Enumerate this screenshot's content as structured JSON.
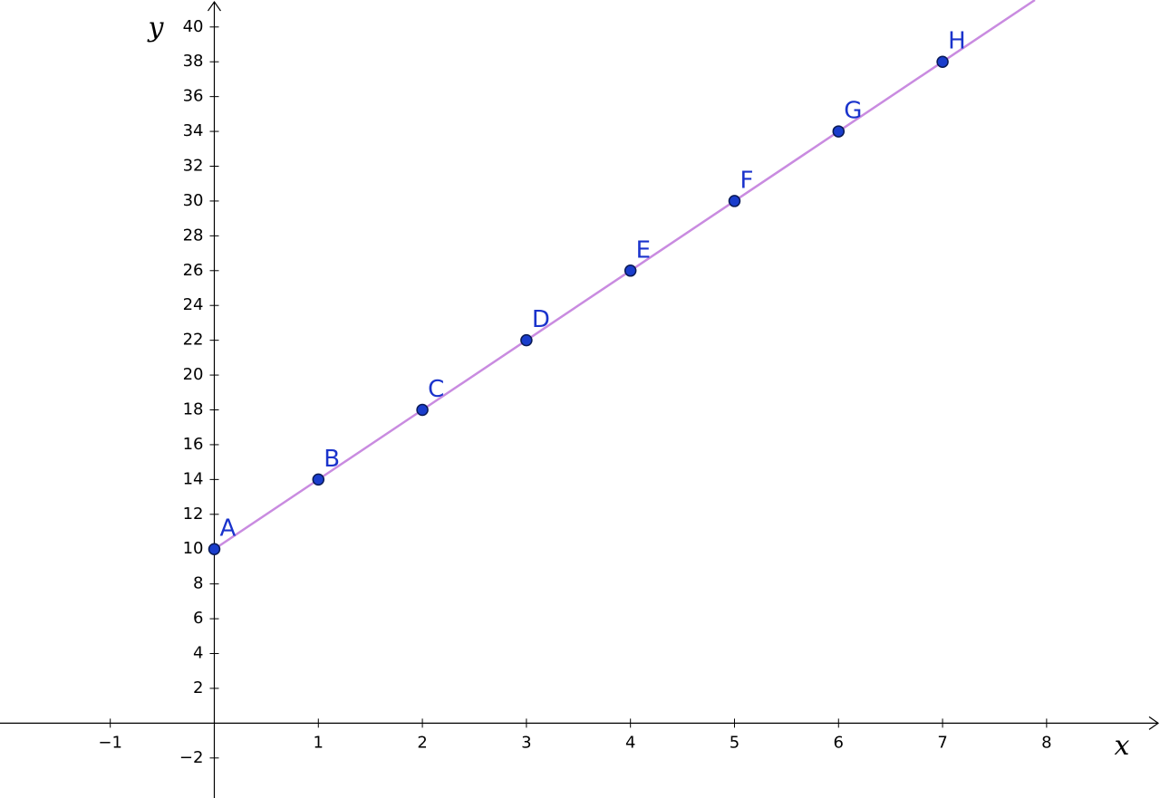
{
  "chart_data": {
    "type": "scatter",
    "x_label": "x",
    "y_label": "y",
    "xlim": [
      -2.06,
      9.09
    ],
    "ylim": [
      -4.3,
      41.55
    ],
    "xticks": [
      {
        "value": -1,
        "label": "−1"
      },
      1,
      2,
      3,
      4,
      5,
      6,
      7,
      8
    ],
    "yticks": [
      {
        "value": -2,
        "label": "−2"
      },
      2,
      4,
      6,
      8,
      10,
      12,
      14,
      16,
      18,
      20,
      22,
      24,
      26,
      28,
      30,
      32,
      34,
      36,
      38,
      40
    ],
    "series": [
      {
        "color": "#1a3dcc",
        "line_color": "#c98be0",
        "labels": [
          "A",
          "B",
          "C",
          "D",
          "E",
          "F",
          "G",
          "H"
        ],
        "x": [
          0,
          1,
          2,
          3,
          4,
          5,
          6,
          7
        ],
        "values": [
          10,
          14,
          18,
          22,
          26,
          30,
          34,
          38
        ]
      }
    ]
  }
}
